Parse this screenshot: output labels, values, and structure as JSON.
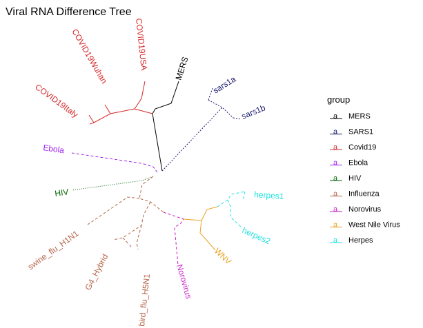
{
  "title": "Viral RNA Difference Tree",
  "legend": {
    "title": "group",
    "key_glyph": "a",
    "items": [
      {
        "label": "MERS",
        "color": "#000000"
      },
      {
        "label": "SARS1",
        "color": "#191970"
      },
      {
        "label": "Covid19",
        "color": "#d62728"
      },
      {
        "label": "Ebola",
        "color": "#a020f0"
      },
      {
        "label": "HIV",
        "color": "#006400"
      },
      {
        "label": "Influenza",
        "color": "#b5654a"
      },
      {
        "label": "Norovirus",
        "color": "#c71fc7"
      },
      {
        "label": "West Nile Virus",
        "color": "#e8a020"
      },
      {
        "label": "Herpes",
        "color": "#20e0e0"
      }
    ]
  },
  "tips": [
    {
      "label": "MERS",
      "group": "MERS"
    },
    {
      "label": "sars1a",
      "group": "SARS1"
    },
    {
      "label": "sars1b",
      "group": "SARS1"
    },
    {
      "label": "COVID19USA",
      "group": "Covid19"
    },
    {
      "label": "COVID19Wuhan",
      "group": "Covid19"
    },
    {
      "label": "COVID19Italy",
      "group": "Covid19"
    },
    {
      "label": "Ebola",
      "group": "Ebola"
    },
    {
      "label": "HIV",
      "group": "HIV"
    },
    {
      "label": "swine_flu_H1N1",
      "group": "Influenza"
    },
    {
      "label": "G4_Hybrid",
      "group": "Influenza"
    },
    {
      "label": "bird_flu_H5N1",
      "group": "Influenza"
    },
    {
      "label": "Norovirus",
      "group": "Norovirus"
    },
    {
      "label": "WNV",
      "group": "West Nile Virus"
    },
    {
      "label": "herpes1",
      "group": "Herpes"
    },
    {
      "label": "herpes2",
      "group": "Herpes"
    }
  ]
}
